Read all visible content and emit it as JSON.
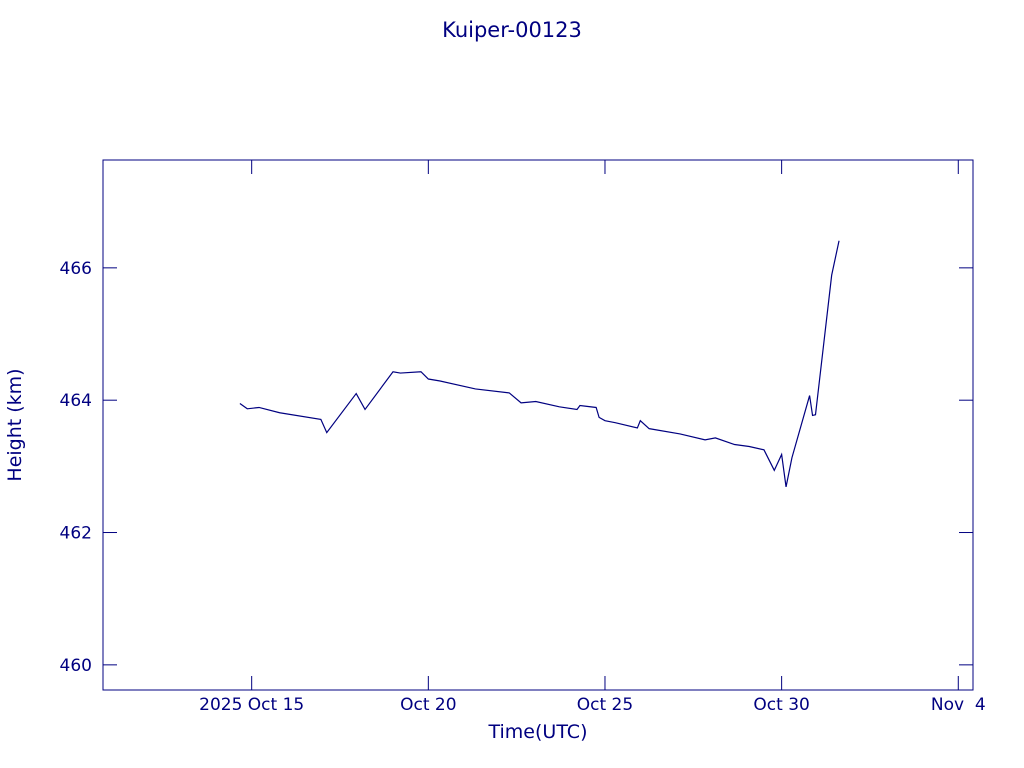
{
  "chart_data": {
    "type": "line",
    "title": "Kuiper-00123",
    "x_label": "Time(UTC)",
    "y_label": "Height (km)",
    "x": [
      "2025-10-14 16:00",
      "2025-10-14 21:00",
      "2025-10-15 05:00",
      "2025-10-15 19:00",
      "2025-10-16 23:00",
      "2025-10-17 03:00",
      "2025-10-17 23:00",
      "2025-10-18 05:00",
      "2025-10-19 00:00",
      "2025-10-19 05:00",
      "2025-10-19 19:00",
      "2025-10-20 00:00",
      "2025-10-20 08:00",
      "2025-10-21 08:00",
      "2025-10-22 07:00",
      "2025-10-22 15:00",
      "2025-10-23 01:00",
      "2025-10-23 17:00",
      "2025-10-24 05:00",
      "2025-10-24 07:00",
      "2025-10-24 18:00",
      "2025-10-24 20:00",
      "2025-10-25 00:00",
      "2025-10-25 07:00",
      "2025-10-25 22:00",
      "2025-10-26 00:00",
      "2025-10-26 06:00",
      "2025-10-27 03:00",
      "2025-10-27 20:00",
      "2025-10-28 03:00",
      "2025-10-28 16:00",
      "2025-10-29 02:00",
      "2025-10-29 12:00",
      "2025-10-29 19:00",
      "2025-10-30 00:00",
      "2025-10-30 03:00",
      "2025-10-30 07:00",
      "2025-10-30 19:00",
      "2025-10-30 21:00",
      "2025-10-30 23:00",
      "2025-10-31 10:00",
      "2025-10-31 15:00"
    ],
    "series": [
      {
        "color": "#000080",
        "values": [
          463.95,
          463.87,
          463.89,
          463.81,
          463.71,
          463.51,
          464.1,
          463.86,
          464.43,
          464.41,
          464.43,
          464.32,
          464.29,
          464.17,
          464.11,
          463.96,
          463.98,
          463.9,
          463.86,
          463.92,
          463.89,
          463.74,
          463.69,
          463.66,
          463.58,
          463.69,
          463.57,
          463.49,
          463.4,
          463.43,
          463.33,
          463.3,
          463.25,
          462.94,
          463.18,
          462.69,
          463.13,
          464.07,
          463.77,
          463.78,
          465.89,
          466.41
        ]
      }
    ],
    "xlim": [
      "2025-10-10 19:00",
      "2025-11-04 10:00"
    ],
    "xticks": [
      {
        "value": "2025-10-15 00:00",
        "label": "2025 Oct 15"
      },
      {
        "value": "2025-10-20 00:00",
        "label": "Oct 20"
      },
      {
        "value": "2025-10-25 00:00",
        "label": "Oct 25"
      },
      {
        "value": "2025-10-30 00:00",
        "label": "Oct 30"
      },
      {
        "value": "2025-11-04 00:00",
        "label": "Nov  4"
      }
    ],
    "ylim": [
      459.62,
      467.63
    ],
    "yticks": [
      460,
      462,
      464,
      466
    ]
  }
}
